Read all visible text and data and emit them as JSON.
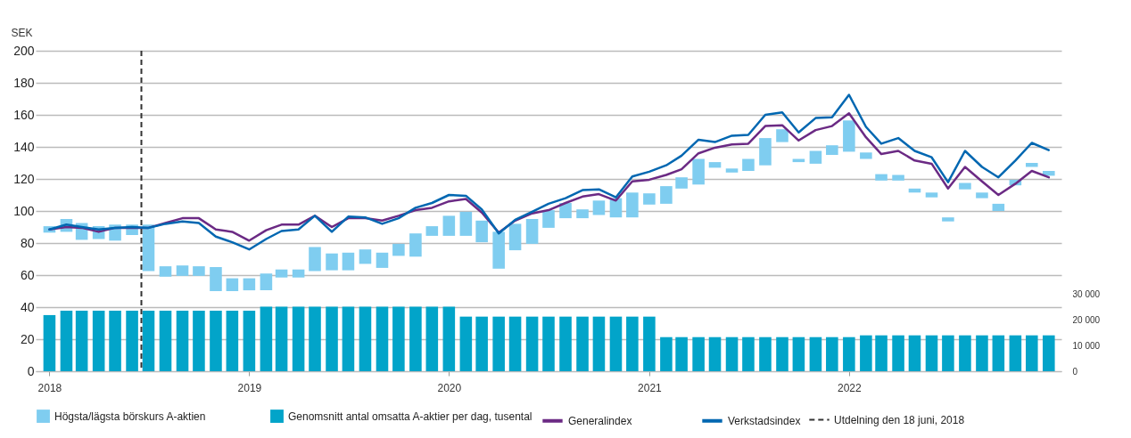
{
  "chart_data": {
    "type": "bar",
    "ylabel": "SEK",
    "x": [
      "2018-01",
      "2018-02",
      "2018-03",
      "2018-04",
      "2018-05",
      "2018-06",
      "2018-07",
      "2018-08",
      "2018-09",
      "2018-10",
      "2018-11",
      "2018-12",
      "2019-01",
      "2019-02",
      "2019-03",
      "2019-04",
      "2019-05",
      "2019-06",
      "2019-07",
      "2019-08",
      "2019-09",
      "2019-10",
      "2019-11",
      "2019-12",
      "2020-01",
      "2020-02",
      "2020-03",
      "2020-04",
      "2020-05",
      "2020-06",
      "2020-07",
      "2020-08",
      "2020-09",
      "2020-10",
      "2020-11",
      "2020-12",
      "2021-01",
      "2021-02",
      "2021-03",
      "2021-04",
      "2021-05",
      "2021-06",
      "2021-07",
      "2021-08",
      "2021-09",
      "2021-10",
      "2021-11",
      "2021-12",
      "2022-01",
      "2022-02",
      "2022-03",
      "2022-04",
      "2022-05",
      "2022-06",
      "2022-07",
      "2022-08",
      "2022-09",
      "2022-10",
      "2022-11",
      "2022-12",
      "2023-01"
    ],
    "series": [
      {
        "name": "Högsta/lägsta börskurs A-aktien",
        "type": "bar",
        "color": "#7fcdf0",
        "base": [
          86.5,
          87,
          82,
          82.5,
          81.5,
          85,
          62.5,
          59,
          59.5,
          59.5,
          50,
          50,
          50.5,
          50.5,
          58.5,
          58.5,
          62.5,
          63,
          63,
          67,
          64.5,
          72,
          71.5,
          84.5,
          84.5,
          84.5,
          80.5,
          64,
          75.5,
          79.5,
          89.5,
          95.5,
          95.5,
          97.5,
          96,
          96,
          104,
          104.5,
          114,
          116.5,
          127,
          124,
          125,
          128.5,
          143,
          130.5,
          129.5,
          135,
          137,
          132.5,
          119,
          119,
          111.5,
          108.5,
          93.5,
          113.5,
          108,
          100,
          116,
          127.5,
          122
        ],
        "values": [
          4,
          8,
          10.5,
          8,
          10,
          6.5,
          29,
          6.5,
          6.5,
          6,
          15,
          8,
          7.5,
          10.5,
          5,
          5,
          15,
          10.5,
          11,
          9,
          9.5,
          7.5,
          14.5,
          6,
          12.5,
          15,
          13.5,
          23,
          16.5,
          15.5,
          11,
          9.5,
          5.5,
          9,
          12,
          15.5,
          7,
          11,
          7,
          16,
          3.5,
          2.5,
          7.5,
          17,
          8,
          2,
          8,
          6,
          19.5,
          4,
          4,
          3.5,
          2.5,
          3,
          2.5,
          4,
          3.5,
          4.5,
          3.5,
          2.5,
          3
        ]
      },
      {
        "name": "Genomsnitt antal omsatta A-aktier per dag, tusental",
        "type": "bar",
        "axis": "y2",
        "color": "#02a4c9",
        "values": [
          21900,
          23600,
          23600,
          23600,
          23600,
          23600,
          23600,
          23600,
          23600,
          23600,
          23600,
          23600,
          23600,
          25200,
          25200,
          25200,
          25200,
          25200,
          25200,
          25200,
          25200,
          25200,
          25200,
          25200,
          25200,
          21300,
          21300,
          21300,
          21300,
          21300,
          21300,
          21300,
          21300,
          21300,
          21300,
          21300,
          21300,
          13300,
          13300,
          13300,
          13300,
          13300,
          13300,
          13300,
          13300,
          13300,
          13300,
          13300,
          13300,
          14000,
          14000,
          14000,
          14000,
          14000,
          14000,
          14000,
          14000,
          14000,
          14000,
          14000,
          14000
        ]
      },
      {
        "name": "Generalindex",
        "type": "line",
        "color": "#6b2a84",
        "values": [
          88.5,
          90,
          89.5,
          87,
          89.5,
          89.5,
          89.5,
          92.5,
          95.5,
          95.5,
          88.5,
          87,
          81.5,
          88,
          91.5,
          91.5,
          97,
          90,
          95.5,
          95.5,
          94,
          97,
          100.5,
          102,
          106,
          107.5,
          99,
          86.5,
          94,
          98.5,
          100.5,
          105,
          109,
          110.5,
          106.5,
          118.5,
          119.5,
          122.5,
          126,
          136,
          139.5,
          141.5,
          142,
          153,
          153.5,
          144,
          150.5,
          153,
          161,
          146,
          135.5,
          137.5,
          131.5,
          129.5,
          114,
          127.5,
          118.5,
          110,
          117,
          125,
          121
        ]
      },
      {
        "name": "Verkstadsindex",
        "type": "line",
        "color": "#0067b1",
        "values": [
          88.5,
          91.5,
          90,
          88.5,
          89.5,
          90,
          89.5,
          92,
          93.5,
          92.5,
          84,
          80.5,
          76,
          82.5,
          87.5,
          88.5,
          97,
          87,
          96.5,
          96,
          92,
          95.5,
          102,
          105,
          110,
          109.5,
          101,
          86,
          94.5,
          99.5,
          104.5,
          108,
          113,
          113.5,
          108.5,
          121.5,
          124.5,
          128.5,
          134.5,
          144.5,
          143,
          147,
          147.5,
          160,
          161.5,
          149,
          158,
          158.5,
          172.5,
          152.5,
          142,
          145.5,
          137.5,
          133.5,
          118,
          137.5,
          127.5,
          121,
          131.5,
          142.5,
          138
        ]
      }
    ],
    "xlim": [
      "2017-12-15",
      "2023-01-16"
    ],
    "xticks": [
      "2018",
      "2019",
      "2020",
      "2021",
      "2022"
    ],
    "ylim": [
      0,
      200
    ],
    "yticks": [
      0,
      20,
      40,
      60,
      80,
      100,
      120,
      140,
      160,
      180,
      200
    ],
    "y2lim": [
      0,
      125000
    ],
    "y2ticks": [
      0,
      {
        "value": 10000,
        "label": "10 000"
      },
      {
        "value": 20000,
        "label": "20 000"
      },
      {
        "value": 30000,
        "label": "30 000"
      }
    ],
    "ref_lines": [
      {
        "axis": "x",
        "value": "2018-06-18",
        "label": "Utdelning den 18 juni, 2018",
        "line_style": "dashed",
        "color": "#333333"
      }
    ],
    "grid": "y",
    "legend": "bottom",
    "marker": "none"
  }
}
